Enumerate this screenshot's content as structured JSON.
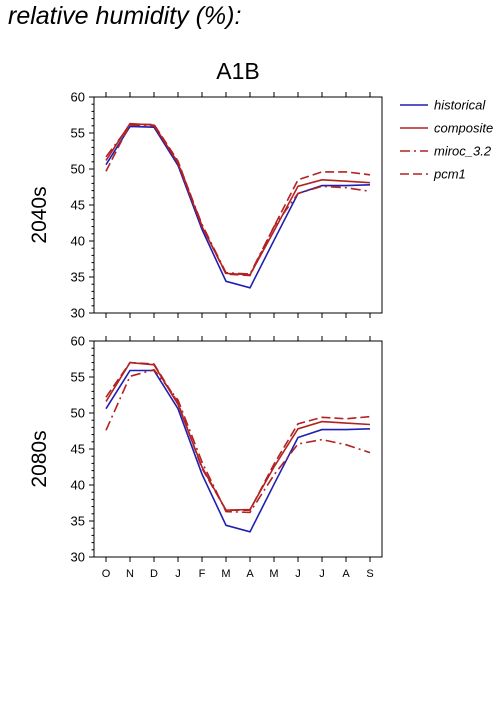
{
  "page_title": "relative humidity (%):",
  "chart_data": {
    "type": "line",
    "title": "A1B",
    "categories": [
      "O",
      "N",
      "D",
      "J",
      "F",
      "M",
      "A",
      "M",
      "J",
      "J",
      "A",
      "S"
    ],
    "ylim": [
      30,
      60
    ],
    "yticks": [
      30,
      35,
      40,
      45,
      50,
      55,
      60
    ],
    "grid": false,
    "legend_position": "right",
    "legend": [
      {
        "name": "historical",
        "color": "#1f1fb4",
        "dash": "solid"
      },
      {
        "name": "composite",
        "color": "#b22222",
        "dash": "solid"
      },
      {
        "name": "miroc_3.2",
        "color": "#b22222",
        "dash": "dashdot"
      },
      {
        "name": "pcm1",
        "color": "#b22222",
        "dash": "dashed"
      }
    ],
    "panels": [
      {
        "row_label": "2040s",
        "series": [
          {
            "name": "historical",
            "values": [
              50.6,
              55.9,
              55.8,
              50.5,
              41.6,
              34.4,
              33.5,
              40.1,
              46.6,
              47.7,
              47.7,
              47.8
            ]
          },
          {
            "name": "composite",
            "values": [
              51.2,
              56.3,
              56.1,
              50.8,
              42.0,
              35.5,
              35.3,
              41.4,
              47.6,
              48.5,
              48.3,
              48.1
            ]
          },
          {
            "name": "miroc_3.2",
            "values": [
              51.7,
              56.1,
              56.0,
              50.9,
              42.3,
              35.6,
              35.4,
              42.0,
              46.6,
              47.6,
              47.4,
              46.9
            ]
          },
          {
            "name": "pcm1",
            "values": [
              49.7,
              56.2,
              56.2,
              51.1,
              42.1,
              35.4,
              35.2,
              42.0,
              48.5,
              49.6,
              49.6,
              49.2
            ]
          }
        ]
      },
      {
        "row_label": "2080s",
        "series": [
          {
            "name": "historical",
            "values": [
              50.6,
              55.9,
              55.9,
              50.6,
              41.5,
              34.4,
              33.5,
              40.1,
              46.6,
              47.7,
              47.7,
              47.8
            ]
          },
          {
            "name": "composite",
            "values": [
              51.6,
              57.0,
              56.7,
              51.2,
              42.5,
              36.5,
              36.6,
              42.5,
              47.8,
              48.8,
              48.6,
              48.4
            ]
          },
          {
            "name": "miroc_3.2",
            "values": [
              47.6,
              55.1,
              56.0,
              51.8,
              43.2,
              36.3,
              36.2,
              41.4,
              45.7,
              46.3,
              45.6,
              44.5
            ]
          },
          {
            "name": "pcm1",
            "values": [
              52.2,
              57.0,
              56.8,
              51.4,
              42.3,
              36.5,
              36.5,
              42.9,
              48.5,
              49.4,
              49.2,
              49.5
            ]
          }
        ]
      }
    ]
  }
}
